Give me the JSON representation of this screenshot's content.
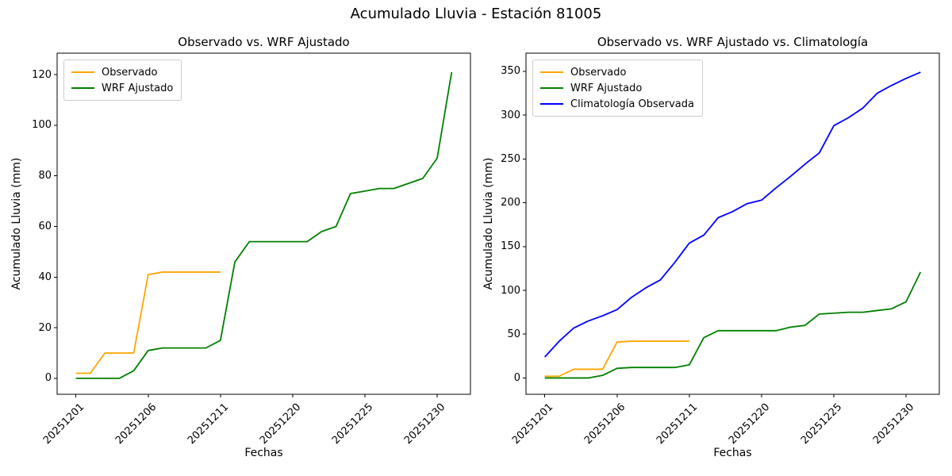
{
  "suptitle": "Acumulado Lluvia - Estación 81005",
  "chart_data": [
    {
      "type": "line",
      "title": "Observado vs. WRF Ajustado",
      "xlabel": "Fechas",
      "ylabel": "Acumulado Lluvia (mm)",
      "x_tick_positions": [
        0,
        5,
        10,
        15,
        20,
        25
      ],
      "x_tick_labels": [
        "20251201",
        "20251206",
        "20251211",
        "20251220",
        "20251225",
        "20251230"
      ],
      "y_ticks": [
        0,
        20,
        40,
        60,
        80,
        100,
        120
      ],
      "xlim": [
        -1.3,
        27.3
      ],
      "ylim": [
        -6.3,
        128.5
      ],
      "grid": false,
      "legend_position": "upper left",
      "series": [
        {
          "name": "Observado",
          "color": "#FFA500",
          "values": [
            2,
            2,
            10,
            10,
            10,
            41,
            42,
            42,
            42,
            42,
            42
          ]
        },
        {
          "name": "WRF Ajustado",
          "color": "#008000",
          "values": [
            0,
            0,
            0,
            0,
            3,
            11,
            12,
            12,
            12,
            12,
            15,
            46,
            54,
            54,
            54,
            54,
            54,
            58,
            60,
            73,
            74,
            75,
            75,
            77,
            79,
            87,
            121
          ]
        }
      ]
    },
    {
      "type": "line",
      "title": "Observado vs. WRF Ajustado vs. Climatología",
      "xlabel": "Fechas",
      "ylabel": "Acumulado Lluvia (mm)",
      "x_tick_positions": [
        0,
        5,
        10,
        15,
        20,
        25
      ],
      "x_tick_labels": [
        "20251201",
        "20251206",
        "20251211",
        "20251220",
        "20251225",
        "20251230"
      ],
      "y_ticks": [
        0,
        50,
        100,
        150,
        200,
        250,
        300,
        350
      ],
      "xlim": [
        -1.3,
        27.3
      ],
      "ylim": [
        -18.6,
        370.8
      ],
      "grid": false,
      "legend_position": "upper left",
      "series": [
        {
          "name": "Observado",
          "color": "#FFA500",
          "values": [
            2,
            2,
            10,
            10,
            10,
            41,
            42,
            42,
            42,
            42,
            42
          ]
        },
        {
          "name": "WRF Ajustado",
          "color": "#008000",
          "values": [
            0,
            0,
            0,
            0,
            3,
            11,
            12,
            12,
            12,
            12,
            15,
            46,
            54,
            54,
            54,
            54,
            54,
            58,
            60,
            73,
            74,
            75,
            75,
            77,
            79,
            87,
            121
          ]
        },
        {
          "name": "Climatología Observada",
          "color": "#0000FF",
          "values": [
            24,
            42,
            57,
            65,
            71,
            78,
            92,
            103,
            112,
            132,
            154,
            163,
            183,
            190,
            199,
            203,
            217,
            230,
            244,
            257,
            288,
            297,
            308,
            325,
            334,
            342,
            349
          ]
        }
      ]
    }
  ]
}
